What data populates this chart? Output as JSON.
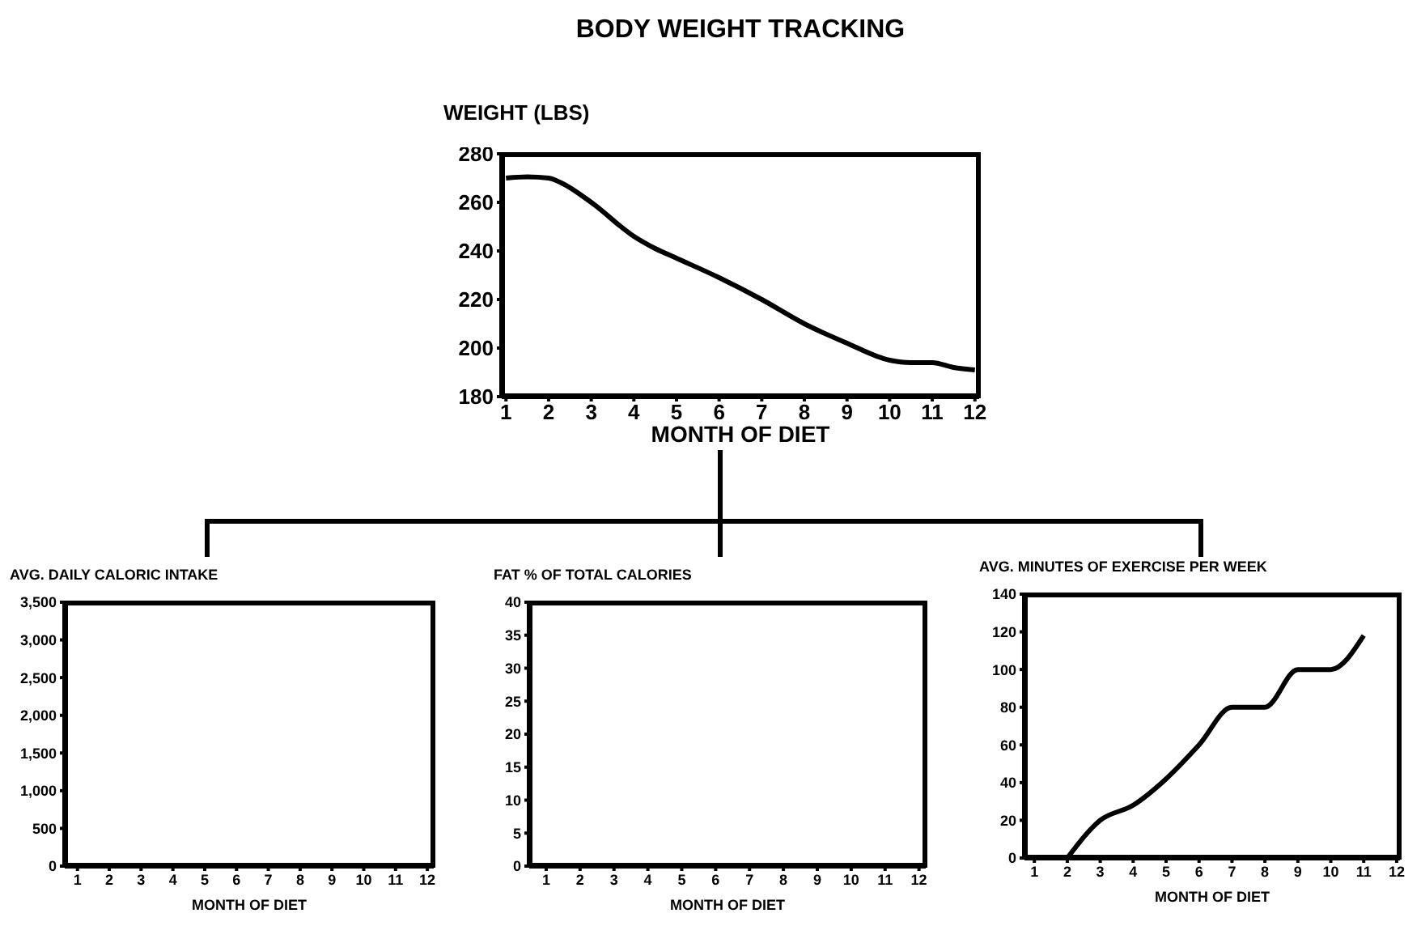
{
  "chart_data": [
    {
      "type": "line",
      "title": "BODY WEIGHT TRACKING",
      "ylabel": "WEIGHT (LBS)",
      "xlabel": "MONTH OF DIET",
      "x": [
        1,
        1.5,
        2,
        2.3,
        3,
        4,
        4.5,
        5,
        6,
        7,
        8,
        9,
        10,
        10.5,
        11,
        11.5,
        12
      ],
      "values": [
        270,
        270.5,
        270,
        268,
        260,
        246,
        241,
        237,
        229,
        220,
        210,
        202,
        195,
        194,
        194,
        192,
        191
      ],
      "color": "#000000",
      "marker": "none",
      "line_style": "solid",
      "grid": false,
      "xlim": [
        0.9,
        12.1
      ],
      "xticks": [
        1,
        2,
        3,
        4,
        5,
        6,
        7,
        8,
        9,
        10,
        11,
        12
      ],
      "ylim": [
        180,
        280
      ],
      "yticks": [
        180,
        200,
        220,
        240,
        260,
        280
      ]
    },
    {
      "type": "line",
      "ylabel": "AVG. DAILY CALORIC INTAKE",
      "xlabel": "MONTH OF DIET",
      "grid": false,
      "xlim": [
        0.6,
        12.2
      ],
      "xticks": [
        1,
        2,
        3,
        4,
        5,
        6,
        7,
        8,
        9,
        10,
        11,
        12
      ],
      "ylim": [
        0,
        3500
      ],
      "yticks": [
        0,
        500,
        {
          "value": 1000,
          "label": "1,000"
        },
        {
          "value": 1500,
          "label": "1,500"
        },
        {
          "value": 2000,
          "label": "2,000"
        },
        {
          "value": 2500,
          "label": "2,500"
        },
        {
          "value": 3000,
          "label": "3,000"
        },
        {
          "value": 3500,
          "label": "3,500"
        }
      ]
    },
    {
      "type": "line",
      "ylabel": "FAT % OF TOTAL CALORIES",
      "xlabel": "MONTH OF DIET",
      "grid": false,
      "xlim": [
        0.5,
        12.2
      ],
      "xticks": [
        1,
        2,
        3,
        4,
        5,
        6,
        7,
        8,
        9,
        10,
        11,
        12
      ],
      "ylim": [
        0,
        40
      ],
      "yticks": [
        0,
        5,
        10,
        15,
        20,
        25,
        30,
        35,
        40
      ]
    },
    {
      "type": "line",
      "ylabel": "AVG. MINUTES OF EXERCISE PER WEEK",
      "xlabel": "MONTH OF DIET",
      "x": [
        2,
        3,
        4,
        5,
        6,
        7,
        8,
        9,
        10,
        11
      ],
      "values": [
        0,
        20,
        28,
        42,
        60,
        80,
        80,
        100,
        100,
        118
      ],
      "color": "#000000",
      "marker": "none",
      "line_style": "solid",
      "grid": false,
      "xlim": [
        0.7,
        12.1
      ],
      "xticks": [
        1,
        2,
        3,
        4,
        5,
        6,
        7,
        8,
        9,
        10,
        11,
        12
      ],
      "ylim": [
        0,
        140
      ],
      "yticks": [
        0,
        20,
        40,
        60,
        80,
        100,
        120,
        140
      ]
    }
  ]
}
